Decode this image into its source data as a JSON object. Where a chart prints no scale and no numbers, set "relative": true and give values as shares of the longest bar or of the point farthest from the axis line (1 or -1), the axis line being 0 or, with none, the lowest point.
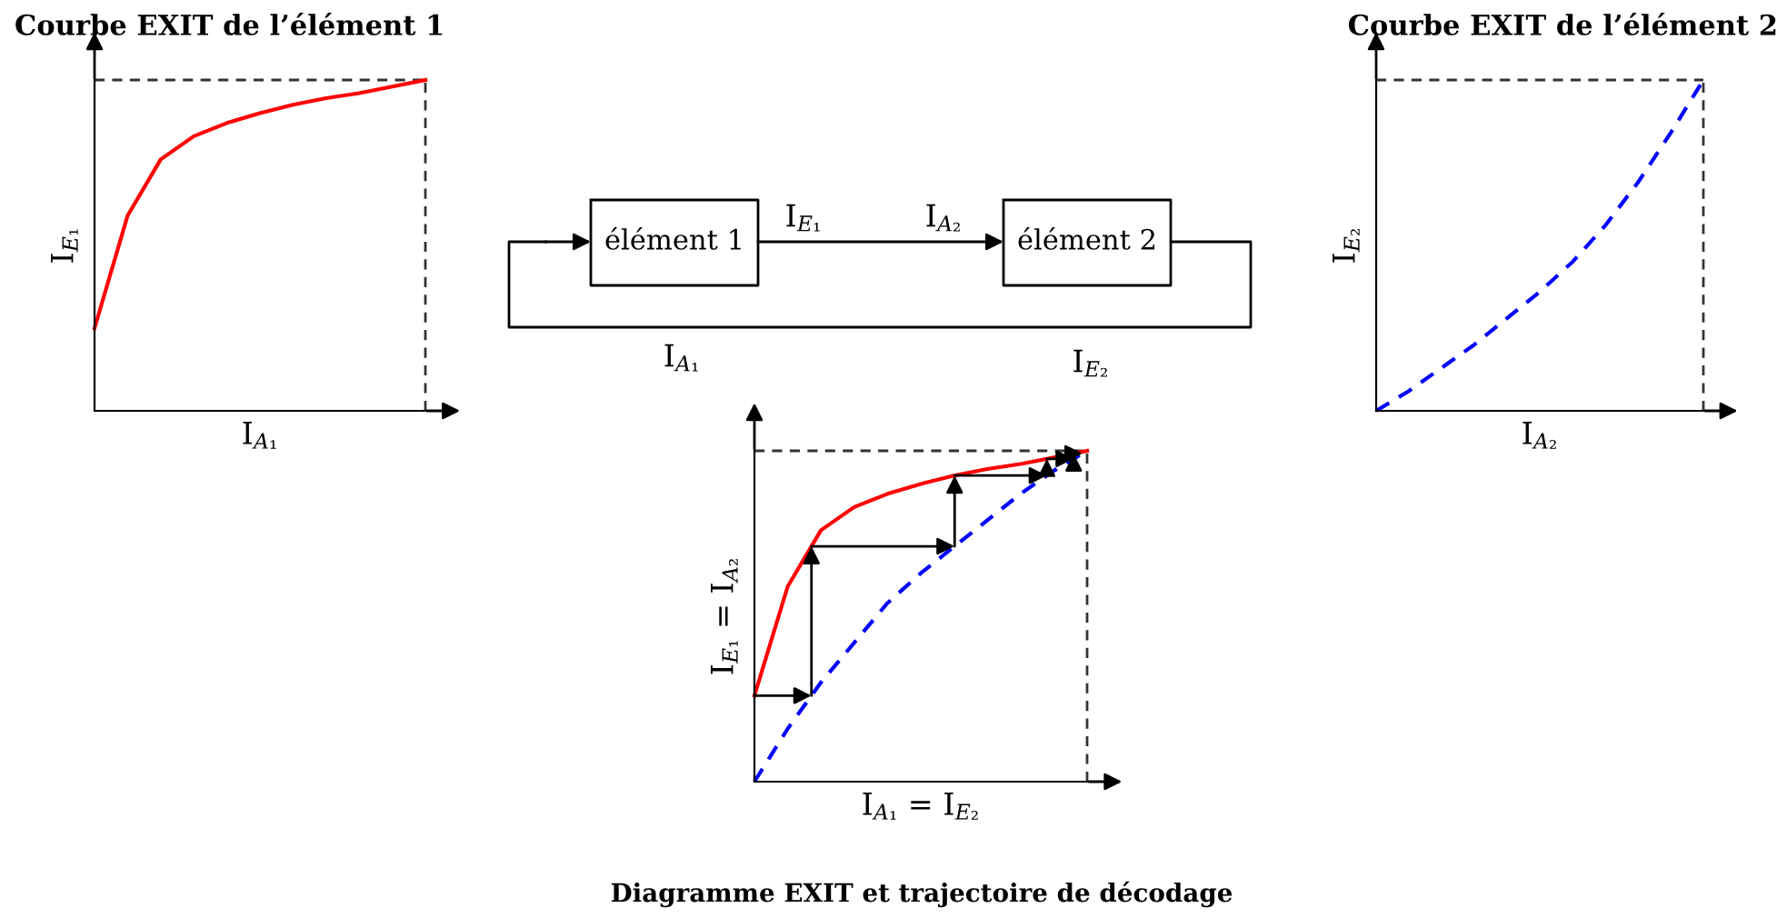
{
  "chart_data": [
    {
      "type": "line",
      "title": "Courbe EXIT de l’élément 1",
      "xlabel": "I$_{A₁}$",
      "ylabel": "I$_{E₁}$",
      "relative": true,
      "tick_labels": false,
      "categories": [
        null,
        null,
        null,
        null,
        null,
        null,
        null,
        null,
        null,
        null,
        null
      ],
      "series": [
        {
          "color": "#ff0000",
          "line_style": "solid",
          "values": [
            0.25,
            0.59,
            0.76,
            0.83,
            0.87,
            0.9,
            0.925,
            0.945,
            0.96,
            0.98,
            1.0
          ]
        }
      ],
      "ref_lines": [
        {
          "axis": "y",
          "value": 1,
          "line_style": "dashed",
          "color": "#333333"
        }
      ]
    },
    {
      "type": "other",
      "annotations": [
        "élément 1",
        "élément 2",
        "I$_{E₁}$",
        "I$_{A₂}$",
        "I$_{A₁}$",
        "I$_{E₂}$"
      ]
    },
    {
      "type": "line",
      "title": "Courbe EXIT de l’élément 2",
      "xlabel": "I$_{A₂}$",
      "ylabel": "I$_{E₂}$",
      "relative": true,
      "tick_labels": false,
      "categories": [
        null,
        null,
        null,
        null,
        null,
        null,
        null,
        null,
        null,
        null,
        null
      ],
      "series": [
        {
          "color": "#0000ff",
          "line_style": "dashed",
          "values": [
            0.0,
            0.06,
            0.13,
            0.2,
            0.28,
            0.36,
            0.45,
            0.56,
            0.69,
            0.84,
            1.0
          ]
        }
      ],
      "ref_lines": [
        {
          "axis": "y",
          "value": 1,
          "line_style": "dashed",
          "color": "#333333"
        }
      ]
    },
    {
      "type": "line",
      "xlabel": "I$_{A₁}$ = I$_{E₂}$",
      "ylabel": "I$_{E₁}$ = I$_{A₂}$",
      "relative": true,
      "tick_labels": false,
      "annotations": [
        "Diagramme EXIT et trajectoire de décodage"
      ],
      "categories": [
        null,
        null,
        null,
        null,
        null,
        null,
        null,
        null,
        null,
        null,
        null
      ],
      "series": [
        {
          "color": "#ff0000",
          "line_style": "solid",
          "values": [
            0.26,
            0.59,
            0.76,
            0.83,
            0.87,
            0.9,
            0.925,
            0.945,
            0.96,
            0.98,
            1.0
          ]
        },
        {
          "color": "#0000ff",
          "line_style": "dashed",
          "values": [
            0.0,
            0.16,
            0.3,
            0.42,
            0.54,
            0.63,
            0.71,
            0.79,
            0.87,
            0.94,
            1.0
          ]
        }
      ],
      "ref_lines": [
        {
          "axis": "y",
          "value": 1,
          "line_style": "dashed",
          "color": "#333333"
        }
      ]
    }
  ]
}
